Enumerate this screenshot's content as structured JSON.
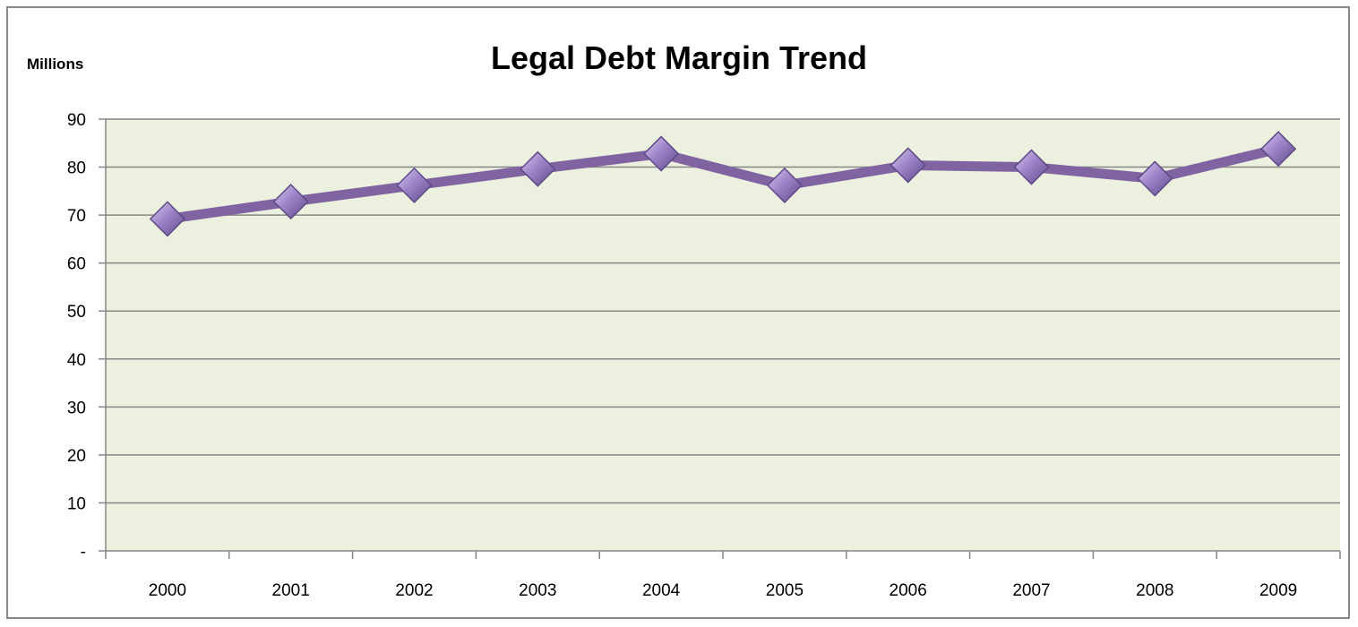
{
  "chart_data": {
    "type": "line",
    "title": "Legal Debt Margin Trend",
    "units_label": "Millions",
    "categories": [
      "2000",
      "2001",
      "2002",
      "2003",
      "2004",
      "2005",
      "2006",
      "2007",
      "2008",
      "2009"
    ],
    "series": [
      {
        "values": [
          69.2,
          72.8,
          76.2,
          79.6,
          82.8,
          76.2,
          80.4,
          80.0,
          77.6,
          83.8
        ]
      }
    ],
    "y_ticks": [
      {
        "value": 0,
        "label": "-"
      },
      {
        "value": 10,
        "label": "10"
      },
      {
        "value": 20,
        "label": "20"
      },
      {
        "value": 30,
        "label": "30"
      },
      {
        "value": 40,
        "label": "40"
      },
      {
        "value": 50,
        "label": "50"
      },
      {
        "value": 60,
        "label": "60"
      },
      {
        "value": 70,
        "label": "70"
      },
      {
        "value": 80,
        "label": "80"
      },
      {
        "value": 90,
        "label": "90"
      }
    ],
    "ylim": [
      0,
      90
    ],
    "grid": true,
    "legend": "none",
    "colors": {
      "plot_background": "#ebf1de",
      "gridline": "#868686",
      "line": "#8064a2",
      "marker_light": "#b7a2d8",
      "marker_dark": "#5f4a87"
    }
  }
}
